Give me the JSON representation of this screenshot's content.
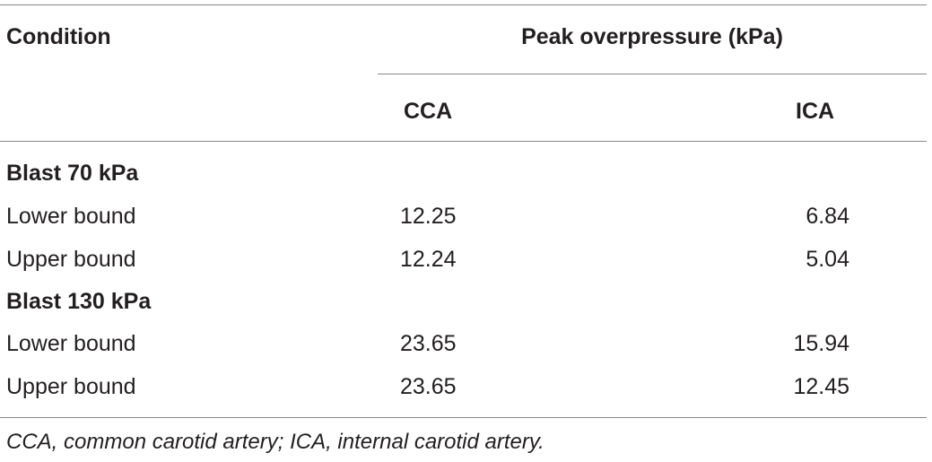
{
  "table": {
    "header": {
      "condition": "Condition",
      "spanning": "Peak overpressure (kPa)",
      "col_cca": "CCA",
      "col_ica": "ICA"
    },
    "groups": [
      {
        "title": "Blast 70 kPa",
        "rows": [
          {
            "label": "Lower bound",
            "cca": "12.25",
            "ica": "6.84"
          },
          {
            "label": "Upper bound",
            "cca": "12.24",
            "ica": "5.04"
          }
        ]
      },
      {
        "title": "Blast 130 kPa",
        "rows": [
          {
            "label": "Lower bound",
            "cca": "23.65",
            "ica": "15.94"
          },
          {
            "label": "Upper bound",
            "cca": "23.65",
            "ica": "12.45"
          }
        ]
      }
    ],
    "footnote": "CCA, common carotid artery; ICA, internal carotid artery."
  }
}
